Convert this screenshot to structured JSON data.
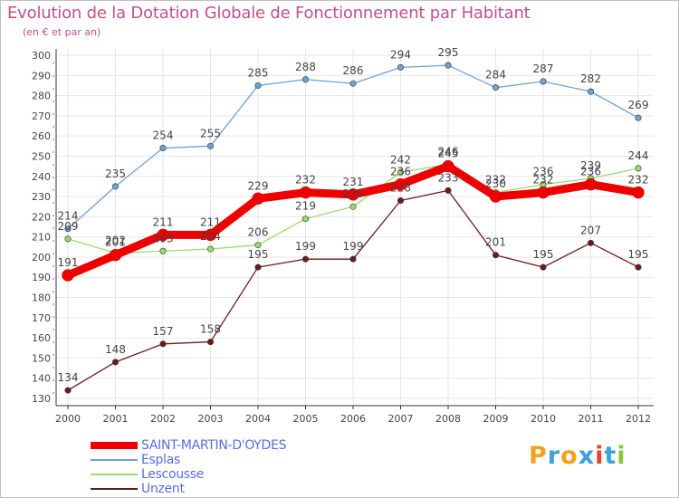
{
  "chart_data": {
    "type": "line",
    "title": "Evolution de la Dotation Globale de Fonctionnement par Habitant",
    "subtitle": "(en € et par an)",
    "x": [
      "2000",
      "2001",
      "2002",
      "2003",
      "2004",
      "2005",
      "2006",
      "2007",
      "2008",
      "2009",
      "2010",
      "2011",
      "2012"
    ],
    "ylim": [
      130,
      300
    ],
    "yticks": [
      "130",
      "140",
      "150",
      "160",
      "170",
      "180",
      "190",
      "200",
      "210",
      "220",
      "230",
      "240",
      "250",
      "260",
      "270",
      "280",
      "290",
      "300"
    ],
    "grid": true,
    "series": [
      {
        "name": "Unzent",
        "color": "#6a1b1b",
        "values": [
          134,
          148,
          157,
          158,
          195,
          199,
          199,
          228,
          233,
          201,
          195,
          207,
          195
        ],
        "labels": [
          "134",
          "148",
          "157",
          "158",
          "195",
          "199",
          "199",
          "228",
          "233",
          "201",
          "195",
          "207",
          "195"
        ]
      },
      {
        "name": "Lescousse",
        "color": "#99dd66",
        "values": [
          209,
          202,
          203,
          204,
          206,
          219,
          225,
          242,
          246,
          232,
          236,
          239,
          244
        ],
        "labels": [
          "209",
          "202",
          "203",
          "204",
          "206",
          "219",
          "225",
          "242",
          "246",
          "232",
          "236",
          "239",
          "244"
        ]
      },
      {
        "name": "Esplas",
        "color": "#6fa3d4",
        "values": [
          214,
          235,
          254,
          255,
          285,
          288,
          286,
          294,
          295,
          284,
          287,
          282,
          269
        ],
        "labels": [
          "214",
          "235",
          "254",
          "255",
          "285",
          "288",
          "286",
          "294",
          "295",
          "284",
          "287",
          "282",
          "269"
        ]
      },
      {
        "name": "SAINT-MARTIN-D'OYDES",
        "color": "#ee0000",
        "values": [
          191,
          201,
          211,
          211,
          229,
          232,
          231,
          236,
          245,
          230,
          232,
          236,
          232
        ],
        "labels": [
          "191",
          "201",
          "211",
          "211",
          "229",
          "232",
          "231",
          "236",
          "245",
          "230",
          "232",
          "236",
          "232"
        ]
      }
    ],
    "legend": [
      {
        "name": "SAINT-MARTIN-D'OYDES",
        "color": "#ee0000"
      },
      {
        "name": "Esplas",
        "color": "#6fa3d4"
      },
      {
        "name": "Lescousse",
        "color": "#99dd66"
      },
      {
        "name": "Unzent",
        "color": "#6a1b1b"
      }
    ]
  },
  "brand": {
    "letters": [
      "P",
      "r",
      "o",
      "x",
      "i",
      "t",
      "i"
    ],
    "colors": [
      "#f2a21b",
      "#3aa3d9",
      "#f2a21b",
      "#3aa3d9",
      "#e8412c",
      "#3aa3d9",
      "#8cc63f"
    ]
  }
}
